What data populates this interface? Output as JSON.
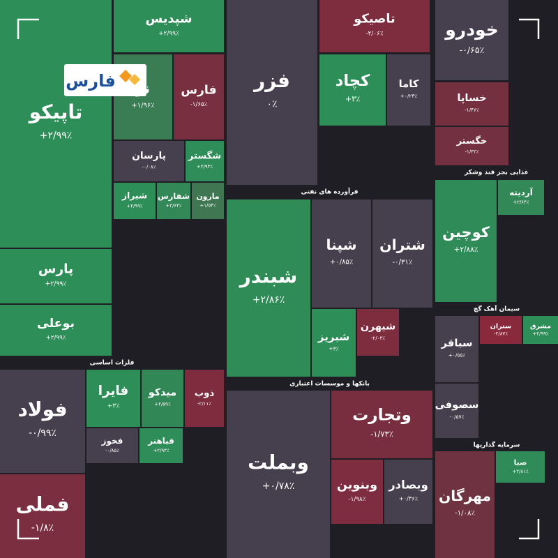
{
  "logo": "فارس",
  "chart_data": {
    "type": "treemap",
    "categories": [
      "تاپیکو",
      "شپدیس",
      "نو",
      "فارس",
      "پارسان",
      "شگستر",
      "شیراز",
      "شفارس",
      "مارون",
      "پارس",
      "بوعلی",
      "فولاد",
      "فملی",
      "فایرا",
      "میدکو",
      "ذوب",
      "فخوز",
      "فباهنر",
      "فزر",
      "تاصیکو",
      "کچاد",
      "کاما",
      "شبندر",
      "شپنا",
      "شتران",
      "شبریز",
      "شیهرن",
      "وبملت",
      "وتجارت",
      "وبنوین",
      "وبصادر",
      "خودرو",
      "خساپا",
      "خگستر",
      "کوچین",
      "آردینه",
      "سباقر",
      "ستران",
      "مشرق",
      "سصوفی",
      "مهرگان",
      "صبا"
    ],
    "values": [
      2.99,
      2.99,
      1.96,
      -1.65,
      -0.08,
      2.93,
      2.99,
      2.64,
      1.54,
      2.99,
      2.99,
      -0.99,
      -1.8,
      3,
      2.59,
      -2.11,
      -0.85,
      2.93,
      0,
      -2.06,
      3,
      0.23,
      2.86,
      0.85,
      -0.31,
      3,
      -2.04,
      0.78,
      -1.73,
      -1.98,
      0.36,
      -0.65,
      -1.46,
      -1.32,
      2.88,
      2.64,
      0.55,
      -2.87,
      2.99,
      -0.57,
      -1.08,
      2.81
    ],
    "value_labels": [
      "+۲/۹۹٪",
      "+۲/۹۹٪",
      "+۱/۹۶٪",
      "-۱/۶۵٪",
      "-۰/۰۸٪",
      "+۲/۹۳٪",
      "+۲/۹۹٪",
      "+۲/۶۴٪",
      "+۱/۵۴٪",
      "+۲/۹۹٪",
      "+۲/۹۹٪",
      "-۰/۹۹٪",
      "-۱/۸٪",
      "+۳٪",
      "+۲/۵۹٪",
      "-۲/۱۱٪",
      "-۰/۸۵٪",
      "+۲/۹۳٪",
      "۰٪",
      "-۲/۰۶٪",
      "+۳٪",
      "+۰/۲۳٪",
      "+۲/۸۶٪",
      "+۰/۸۵٪",
      "-۰/۳۱٪",
      "+۳٪",
      "-۲/۰۴٪",
      "+۰/۷۸٪",
      "-۱/۷۳٪",
      "-۱/۹۸٪",
      "+۰/۳۶٪",
      "-۰/۶۵٪",
      "-۱/۴۶٪",
      "-۱/۳۲٪",
      "+۲/۸۸٪",
      "+۲/۶۴٪",
      "+۰/۵۵٪",
      "-۲/۸۷٪",
      "+۲/۹۹٪",
      "-۰/۵۷٪",
      "-۱/۰۸٪",
      "+۲/۸۱٪"
    ],
    "sections": [
      "فلزات اساسی",
      "فرآورده های نفتی",
      "بانکها و موسسات اعتباری",
      "غذایی بجز قند وشکر",
      "سیمان آهک گچ",
      "سرمایه گذاریها"
    ]
  }
}
